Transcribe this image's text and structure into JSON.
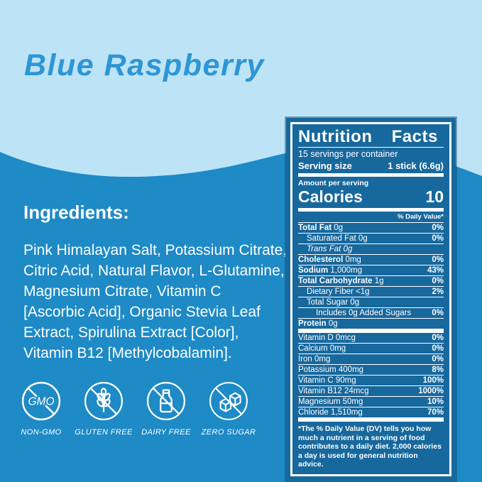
{
  "colors": {
    "light_bg": "#BDE3F7",
    "dark_bg": "#1E8AC6",
    "panel_bg": "#17689D",
    "title_color": "#2E96D4",
    "text_on_dark": "#FFFFFF"
  },
  "title": "Blue Raspberry",
  "ingredients": {
    "heading": "Ingredients:",
    "body": "Pink Himalayan Salt, Potassium Citrate,\nCitric Acid, Natural Flavor, L-Glutamine,\nMagnesium Citrate, Vitamin C\n[Ascorbic Acid], Organic Stevia Leaf\nExtract, Spirulina Extract [Color],\nVitamin B12 [Methylcobalamin]."
  },
  "badges": [
    {
      "icon": "non-gmo-icon",
      "inner_text": "GMO",
      "label": "NON-GMO"
    },
    {
      "icon": "gluten-free-icon",
      "label": "GLUTEN FREE"
    },
    {
      "icon": "dairy-free-icon",
      "label": "DAIRY FREE"
    },
    {
      "icon": "zero-sugar-icon",
      "label": "ZERO SUGAR"
    }
  ],
  "nutrition": {
    "title": "Nutrition Facts",
    "servings_per_container": "15 servings per container",
    "serving_size_label": "Serving size",
    "serving_size_value": "1 stick (6.6g)",
    "amount_per_serving": "Amount per serving",
    "calories_label": "Calories",
    "calories_value": "10",
    "daily_value_header": "% Daily Value*",
    "main_rows": [
      {
        "bold": "Total Fat",
        "rest": " 0g",
        "pct": "0%",
        "indent": 0
      },
      {
        "bold": "",
        "rest": "Saturated Fat 0g",
        "pct": "0%",
        "indent": 1
      },
      {
        "bold": "",
        "rest": "Trans Fat 0g",
        "pct": "",
        "indent": 1,
        "italic": true
      },
      {
        "bold": "Cholesterol",
        "rest": " 0mg",
        "pct": "0%",
        "indent": 0
      },
      {
        "bold": "Sodium",
        "rest": " 1,000mg",
        "pct": "43%",
        "indent": 0
      },
      {
        "bold": "Total Carbohydrate",
        "rest": " 1g",
        "pct": "0%",
        "indent": 0
      },
      {
        "bold": "",
        "rest": "Dietary Fiber <1g",
        "pct": "2%",
        "indent": 1
      },
      {
        "bold": "",
        "rest": "Total Sugar 0g",
        "pct": "",
        "indent": 1
      },
      {
        "bold": "",
        "rest": "Includes 0g Added Sugars",
        "pct": "0%",
        "indent": 2
      },
      {
        "bold": "Protein",
        "rest": " 0g",
        "pct": "",
        "indent": 0
      }
    ],
    "vitamin_rows": [
      {
        "bold": "",
        "rest": "Vitamin D 0mcg",
        "pct": "0%",
        "indent": 0
      },
      {
        "bold": "",
        "rest": "Calcium 0mg",
        "pct": "0%",
        "indent": 0
      },
      {
        "bold": "",
        "rest": "Iron 0mg",
        "pct": "0%",
        "indent": 0
      },
      {
        "bold": "",
        "rest": "Potassium 400mg",
        "pct": "8%",
        "indent": 0
      },
      {
        "bold": "",
        "rest": "Vitamin C 90mg",
        "pct": "100%",
        "indent": 0
      },
      {
        "bold": "",
        "rest": "Vitamin B12 24mcg",
        "pct": "1000%",
        "indent": 0
      },
      {
        "bold": "",
        "rest": "Magnesium 50mg",
        "pct": "10%",
        "indent": 0
      },
      {
        "bold": "",
        "rest": "Chloride 1,510mg",
        "pct": "70%",
        "indent": 0
      }
    ],
    "footnote": "*The % Daily Value (DV) tells you how much a nutrient in a serving of food contributes to a daily diet. 2,000 calories a day is used for general nutrition advice."
  }
}
